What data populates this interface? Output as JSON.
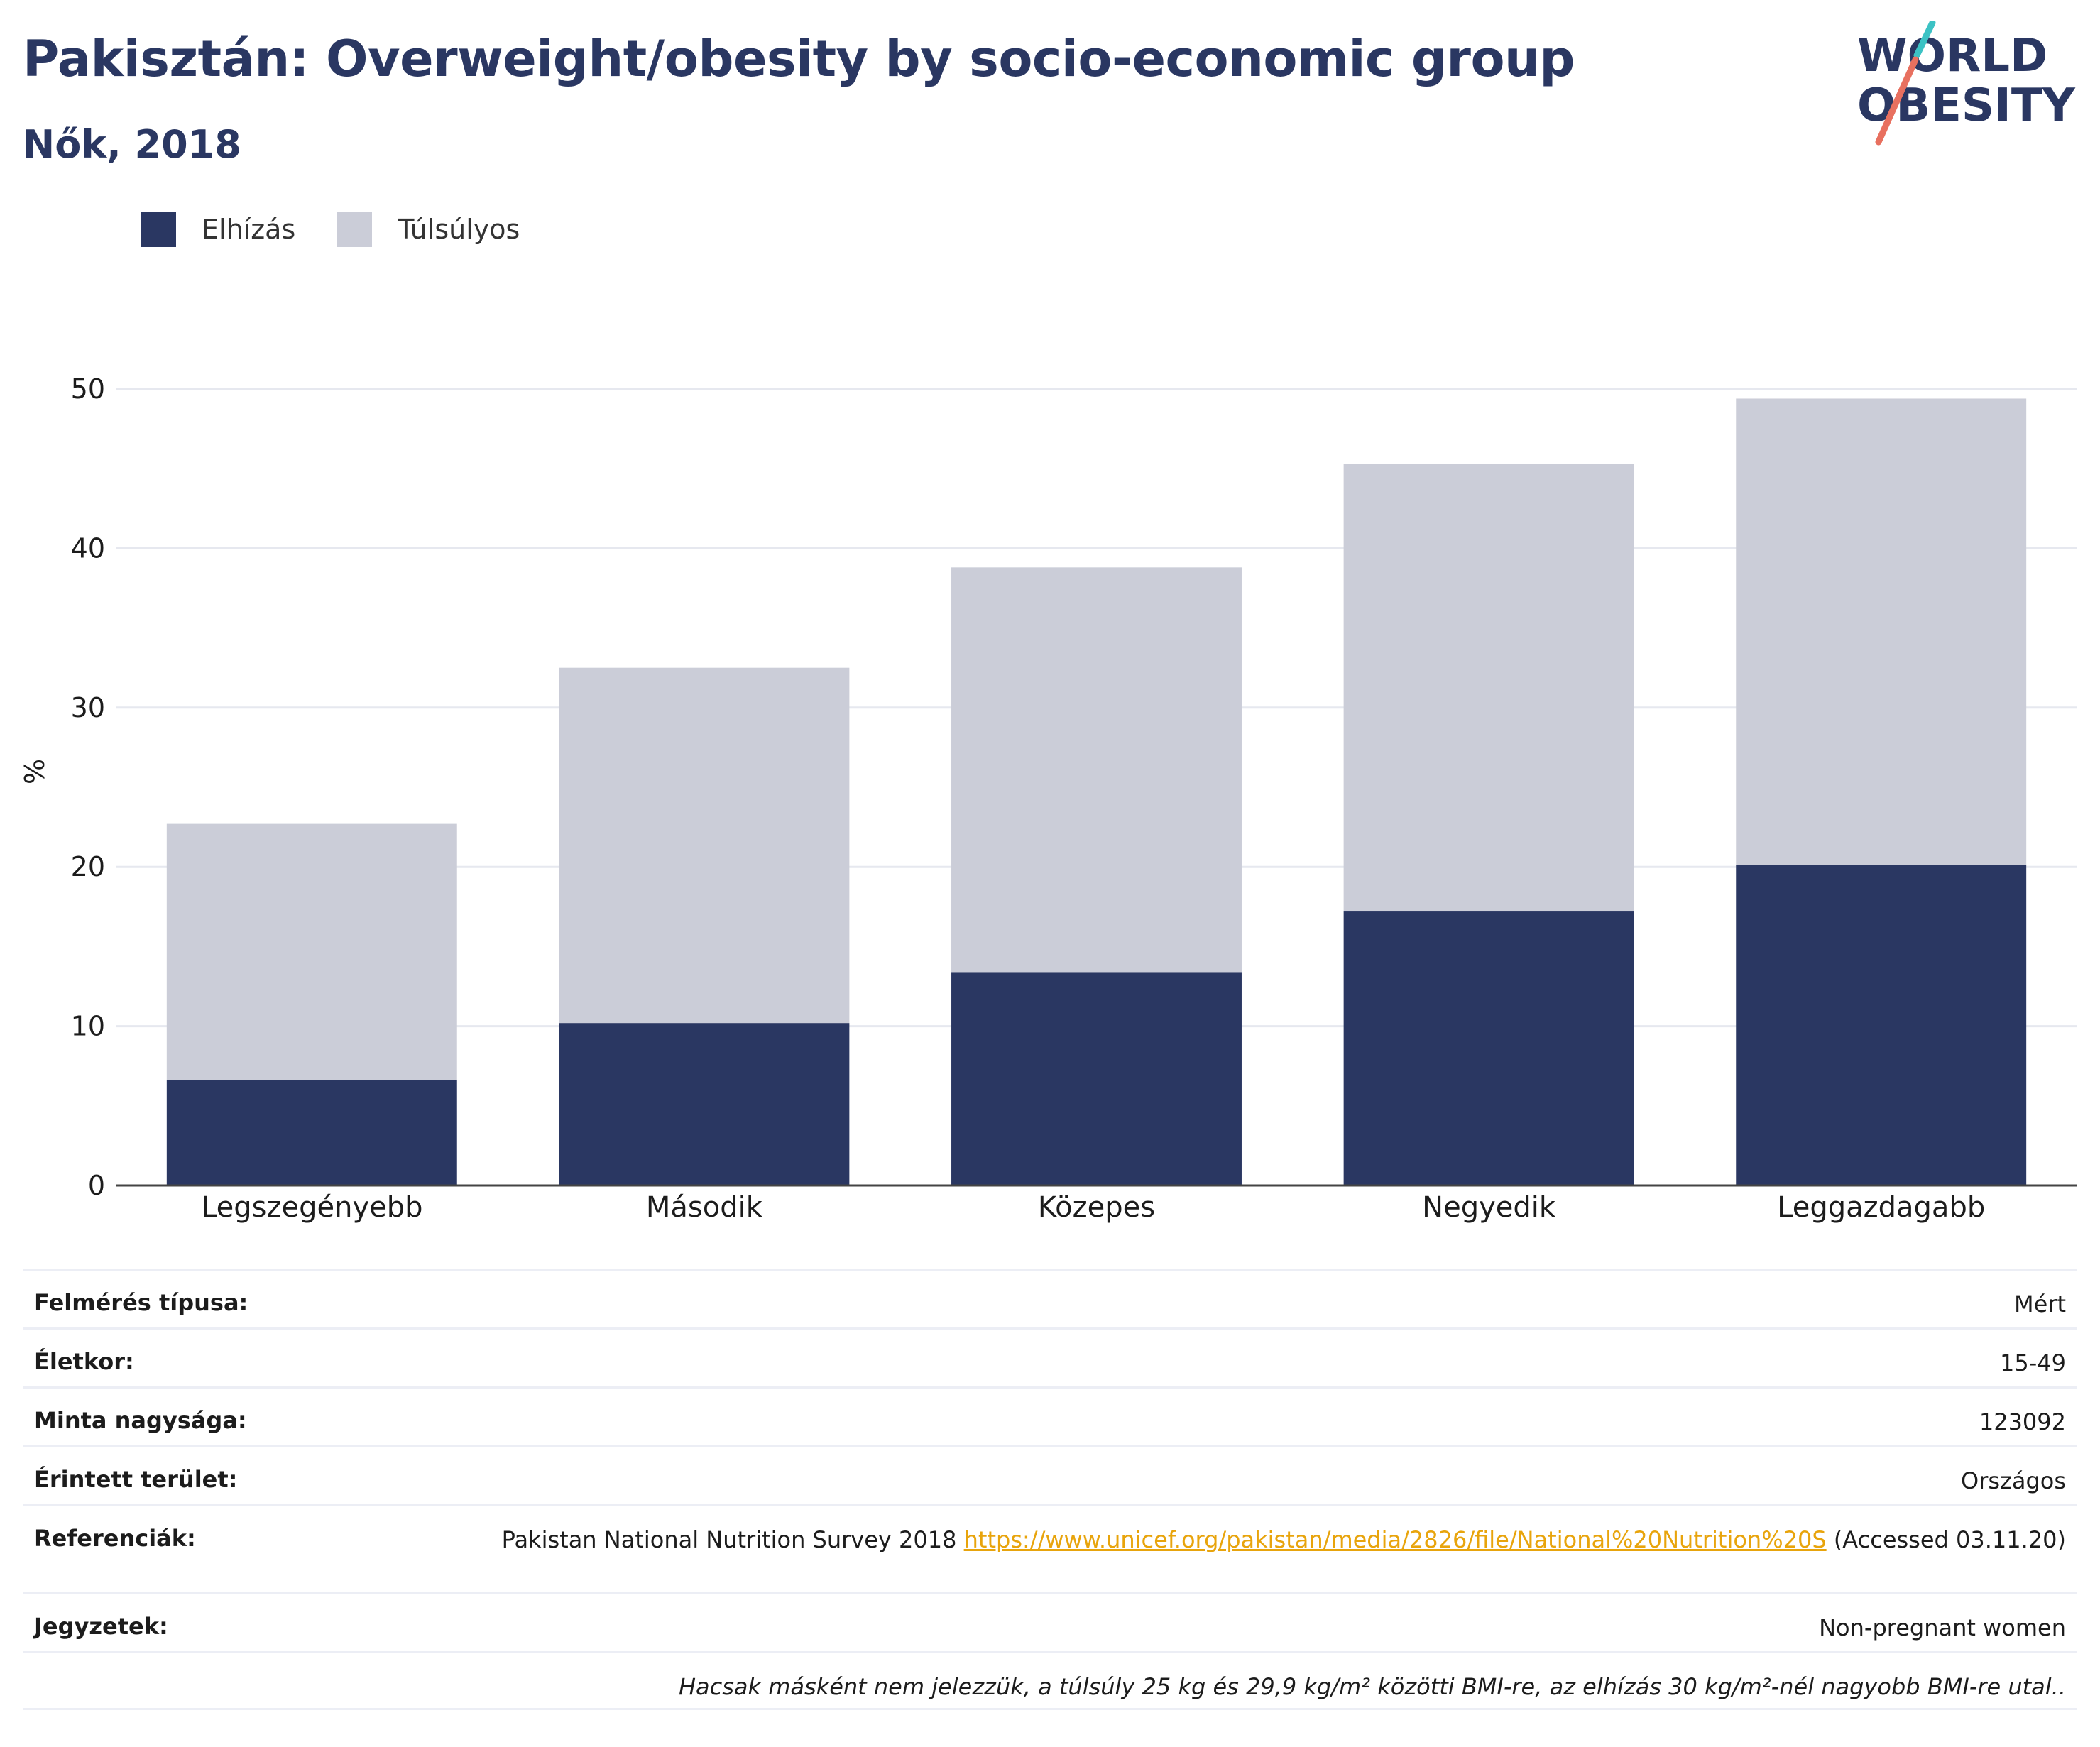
{
  "header": {
    "title": "Pakisztán: Overweight/obesity by socio-economic group",
    "subtitle": "Nők, 2018",
    "logo_line1": "WORLD",
    "logo_line2": "OBESITY"
  },
  "colors": {
    "obesity": "#2a3762",
    "overweight": "#cbcdd8",
    "title": "#2a3762",
    "link": "#e8a40c",
    "logo_slash_teal": "#3cc2c4",
    "logo_slash_red": "#e8705f"
  },
  "legend": [
    {
      "label": "Elhízás",
      "color": "#2a3762"
    },
    {
      "label": "Túlsúlyos",
      "color": "#cbcdd8"
    }
  ],
  "chart_data": {
    "type": "bar",
    "stacked": true,
    "categories": [
      "Legszegényebb",
      "Második",
      "Közepes",
      "Negyedik",
      "Leggazdagabb"
    ],
    "series": [
      {
        "name": "Elhízás",
        "values": [
          6.6,
          10.2,
          13.4,
          17.2,
          20.1
        ]
      },
      {
        "name": "Túlsúlyos",
        "values": [
          16.1,
          22.3,
          25.4,
          28.1,
          29.3
        ]
      }
    ],
    "ylabel": "%",
    "xlabel": "",
    "ylim": [
      0,
      50
    ],
    "yticks": [
      0,
      10,
      20,
      30,
      40,
      50
    ],
    "grid": true,
    "legend_position": "top-left"
  },
  "meta": {
    "survey_type_label": "Felmérés típusa:",
    "survey_type_value": "Mért",
    "age_label": "Életkor:",
    "age_value": "15-49",
    "sample_label": "Minta nagysága:",
    "sample_value": "123092",
    "area_label": "Érintett terület:",
    "area_value": "Országos",
    "ref_label": "Referenciák:",
    "ref_text": "Pakistan National Nutrition Survey 2018 ",
    "ref_link": "https://www.unicef.org/pakistan/media/2826/file/National%20Nutrition%20S",
    "ref_accessed": " (Accessed 03.11.20)",
    "notes_label": "Jegyzetek:",
    "notes_value": "Non-pregnant women",
    "footnote": "Hacsak másként nem jelezzük, a túlsúly 25 kg és 29,9 kg/m² közötti BMI-re, az elhízás 30 kg/m²-nél nagyobb BMI-re utal.."
  }
}
